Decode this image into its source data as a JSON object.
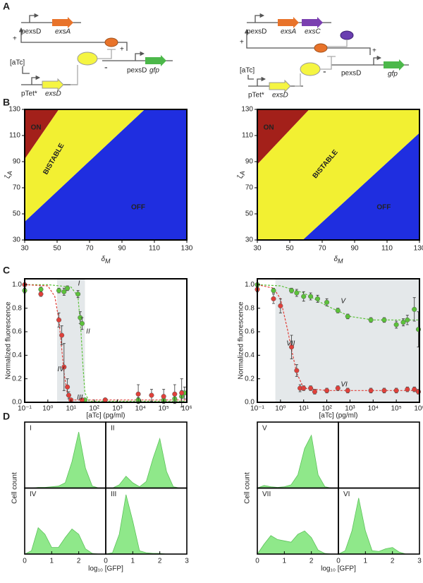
{
  "panel_labels": [
    "A",
    "B",
    "C",
    "D"
  ],
  "diagrams": {
    "left": {
      "labels": [
        "pexsD",
        "exsA",
        "+",
        "+",
        "-",
        "pexsD",
        "gfp",
        "[aTc]",
        "pTet*",
        "exsD"
      ]
    },
    "right": {
      "labels": [
        "pexsD",
        "exsA",
        "exsC",
        "+",
        "+",
        "-",
        "pexsD",
        "gfp",
        "[aTc]",
        "pTet*",
        "exsD"
      ]
    }
  },
  "chart_data": [
    {
      "type": "phase",
      "xlabel": {
        "symbol": "δ",
        "subscript": "M"
      },
      "ylabel": {
        "symbol": "ζ",
        "subscript": "A"
      },
      "xlim": [
        30,
        130
      ],
      "ylim": [
        30,
        130
      ],
      "xticks": [
        30,
        50,
        70,
        90,
        110,
        130
      ],
      "yticks": [
        30,
        50,
        70,
        90,
        110,
        130
      ],
      "regions": [
        {
          "name": "OFF",
          "color": "#1f2ee0",
          "points": [
            [
              30,
              30
            ],
            [
              30,
              44
            ],
            [
              104,
              130
            ],
            [
              130,
              130
            ],
            [
              130,
              30
            ]
          ]
        },
        {
          "name": "BISTABLE",
          "color": "#f2f032",
          "points": [
            [
              30,
              44
            ],
            [
              30,
              92
            ],
            [
              51,
              130
            ],
            [
              104,
              130
            ]
          ]
        },
        {
          "name": "ON",
          "color": "#a3201a",
          "points": [
            [
              30,
              92
            ],
            [
              30,
              130
            ],
            [
              51,
              130
            ]
          ]
        }
      ]
    },
    {
      "type": "phase",
      "xlabel": {
        "symbol": "δ",
        "subscript": "M"
      },
      "ylabel": {
        "symbol": "ζ",
        "subscript": "A"
      },
      "xlim": [
        30,
        130
      ],
      "ylim": [
        30,
        130
      ],
      "xticks": [
        30,
        50,
        70,
        90,
        110,
        130
      ],
      "yticks": [
        30,
        50,
        70,
        90,
        110,
        130
      ],
      "regions": [
        {
          "name": "OFF",
          "color": "#1f2ee0",
          "points": [
            [
              58,
              30
            ],
            [
              130,
              112
            ],
            [
              130,
              30
            ]
          ]
        },
        {
          "name": "BISTABLE",
          "color": "#f2f032",
          "points": [
            [
              30,
              30
            ],
            [
              30,
              88
            ],
            [
              62,
              130
            ],
            [
              130,
              130
            ],
            [
              130,
              112
            ],
            [
              58,
              30
            ]
          ]
        },
        {
          "name": "ON",
          "color": "#a3201a",
          "points": [
            [
              30,
              88
            ],
            [
              30,
              130
            ],
            [
              62,
              130
            ]
          ]
        }
      ]
    },
    {
      "type": "dose",
      "xlabel": "[aTc] (pg/ml)",
      "ylabel": "Normalized fluorescence",
      "log_x": true,
      "xlim": [
        0.1,
        1000000
      ],
      "ylim": [
        0,
        1.05
      ],
      "shaded_x": [
        2.5,
        40
      ],
      "xticks": [
        {
          "value": 0.1,
          "label": "10⁻¹"
        },
        {
          "value": 1,
          "label": "10⁰"
        },
        {
          "value": 10,
          "label": "10¹"
        },
        {
          "value": 100,
          "label": "10²"
        },
        {
          "value": 1000,
          "label": "10³"
        },
        {
          "value": 10000,
          "label": "10⁴"
        },
        {
          "value": 100000,
          "label": "10⁵"
        },
        {
          "value": 1000000,
          "label": "10⁶"
        }
      ],
      "yticks": [
        {
          "value": 0,
          "label": "0.0"
        },
        {
          "value": 0.2,
          "label": "0.2"
        },
        {
          "value": 0.4,
          "label": "0.4"
        },
        {
          "value": 0.6,
          "label": "0.6"
        },
        {
          "value": 0.8,
          "label": "0.8"
        },
        {
          "value": 1,
          "label": "1.0"
        }
      ],
      "series": [
        {
          "color": "#5cc23a",
          "x": [
            0.1,
            0.5,
            3,
            5,
            7,
            20,
            25,
            30,
            40,
            300,
            8000,
            100000,
            300000,
            600000,
            800000
          ],
          "values": [
            0.95,
            0.96,
            0.95,
            0.94,
            0.97,
            0.92,
            0.72,
            0.67,
            0.02,
            0.02,
            0.02,
            0.02,
            0.03,
            0.05,
            0.08
          ],
          "errors": [
            0.02,
            0.02,
            0.02,
            0.03,
            0.02,
            0.03,
            0.05,
            0.05,
            0.01,
            0.01,
            0.02,
            0.02,
            0.03,
            0.05,
            0.05
          ],
          "fit_x": [
            0.1,
            1,
            10,
            20,
            27,
            33,
            40,
            60,
            1000000
          ],
          "fit_values": [
            1,
            1,
            0.98,
            0.9,
            0.6,
            0.3,
            0.08,
            0.01,
            0.01
          ]
        },
        {
          "color": "#e0403a",
          "x": [
            0.1,
            0.5,
            3,
            4,
            5,
            7,
            8,
            10,
            30,
            300,
            8000,
            30000,
            100000,
            300000,
            600000
          ],
          "values": [
            1,
            0.92,
            0.7,
            0.57,
            0.3,
            0.13,
            0.06,
            0.02,
            0.02,
            0.02,
            0.07,
            0.06,
            0.05,
            0.07,
            0.08
          ],
          "errors": [
            0.01,
            0.02,
            0.06,
            0.08,
            0.2,
            0.07,
            0.03,
            0.01,
            0.01,
            0.01,
            0.08,
            0.05,
            0.06,
            0.08,
            0.12
          ],
          "fit_x": [
            0.1,
            1,
            2,
            3,
            4,
            5,
            7,
            10,
            1000000
          ],
          "fit_values": [
            1,
            0.99,
            0.9,
            0.7,
            0.45,
            0.25,
            0.07,
            0.02,
            0.02
          ]
        }
      ],
      "annotations": [
        {
          "text": "I",
          "x": 20,
          "y": 1.01
        },
        {
          "text": "II",
          "x": 45,
          "y": 0.6
        },
        {
          "text": "IV",
          "x": 2.6,
          "y": 0.28
        },
        {
          "text": "III",
          "x": 18,
          "y": 0.04
        }
      ]
    },
    {
      "type": "dose",
      "xlabel": "[aTc] (pg/ml)",
      "ylabel": "Normalized fluorescence",
      "log_x": true,
      "xlim": [
        0.1,
        1000000
      ],
      "ylim": [
        0,
        1.05
      ],
      "shaded_x": [
        0.6,
        1000000
      ],
      "xticks": [
        {
          "value": 0.1,
          "label": "10⁻¹"
        },
        {
          "value": 1,
          "label": "10⁰"
        },
        {
          "value": 10,
          "label": "10¹"
        },
        {
          "value": 100,
          "label": "10²"
        },
        {
          "value": 1000,
          "label": "10³"
        },
        {
          "value": 10000,
          "label": "10⁴"
        },
        {
          "value": 100000,
          "label": "10⁵"
        },
        {
          "value": 1000000,
          "label": "10⁶"
        }
      ],
      "yticks": [
        {
          "value": 0,
          "label": "0.0"
        },
        {
          "value": 0.2,
          "label": "0.2"
        },
        {
          "value": 0.4,
          "label": "0.4"
        },
        {
          "value": 0.6,
          "label": "0.6"
        },
        {
          "value": 0.8,
          "label": "0.8"
        },
        {
          "value": 1,
          "label": "1.0"
        }
      ],
      "series": [
        {
          "color": "#5cc23a",
          "x": [
            0.1,
            0.5,
            3,
            5,
            10,
            20,
            40,
            100,
            300,
            800,
            8000,
            30000,
            100000,
            200000,
            300000,
            600000,
            900000
          ],
          "values": [
            1,
            0.95,
            0.95,
            0.93,
            0.9,
            0.9,
            0.88,
            0.85,
            0.78,
            0.73,
            0.7,
            0.7,
            0.66,
            0.68,
            0.7,
            0.79,
            0.62
          ],
          "errors": [
            0.01,
            0.02,
            0.02,
            0.03,
            0.04,
            0.03,
            0.03,
            0.03,
            0.02,
            0.02,
            0.02,
            0.02,
            0.03,
            0.03,
            0.04,
            0.1,
            0.15
          ],
          "fit_x": [
            0.1,
            1,
            10,
            100,
            1000,
            10000,
            1000000
          ],
          "fit_values": [
            1,
            0.99,
            0.93,
            0.82,
            0.73,
            0.7,
            0.7
          ]
        },
        {
          "color": "#e0403a",
          "x": [
            0.1,
            0.5,
            1,
            3,
            5,
            7,
            10,
            20,
            30,
            100,
            300,
            800,
            8000,
            30000,
            100000,
            300000,
            600000,
            900000
          ],
          "values": [
            0.96,
            0.88,
            0.82,
            0.47,
            0.27,
            0.12,
            0.12,
            0.12,
            0.09,
            0.1,
            0.12,
            0.1,
            0.1,
            0.1,
            0.1,
            0.11,
            0.11,
            0.09
          ],
          "errors": [
            0.02,
            0.04,
            0.06,
            0.1,
            0.05,
            0.03,
            0.02,
            0.02,
            0.02,
            0.02,
            0.02,
            0.02,
            0.02,
            0.02,
            0.02,
            0.02,
            0.02,
            0.02
          ],
          "fit_x": [
            0.1,
            0.5,
            1,
            2,
            3,
            5,
            10,
            100,
            1000000
          ],
          "fit_values": [
            1,
            0.97,
            0.88,
            0.62,
            0.45,
            0.25,
            0.12,
            0.1,
            0.1
          ]
        }
      ],
      "annotations": [
        {
          "text": "V",
          "x": 400,
          "y": 0.86
        },
        {
          "text": "VII",
          "x": 1.8,
          "y": 0.5
        },
        {
          "text": "VI",
          "x": 400,
          "y": 0.15
        }
      ]
    },
    {
      "type": "density",
      "xlabel": "log₁₀ [GFP]",
      "ylabel": "Cell count",
      "color": "#8fe88a",
      "xlim": [
        0,
        3
      ],
      "ylim": [
        0,
        1
      ],
      "x": [
        0,
        0.25,
        0.5,
        0.75,
        1,
        1.25,
        1.5,
        1.75,
        2,
        2.25,
        2.5,
        2.75,
        3
      ],
      "panels": [
        {
          "name": "I",
          "values": [
            0,
            0,
            0.01,
            0.01,
            0.02,
            0.03,
            0.08,
            0.4,
            0.85,
            0.3,
            0.03,
            0,
            0
          ]
        },
        {
          "name": "II",
          "values": [
            0,
            0,
            0.05,
            0.18,
            0.08,
            0.02,
            0.1,
            0.45,
            0.75,
            0.25,
            0.02,
            0,
            0
          ]
        },
        {
          "name": "IV",
          "values": [
            0,
            0.05,
            0.4,
            0.3,
            0.1,
            0.1,
            0.25,
            0.38,
            0.3,
            0.08,
            0.01,
            0,
            0
          ],
          "xticks": [
            0,
            1,
            2
          ]
        },
        {
          "name": "III",
          "values": [
            0,
            0.02,
            0.3,
            0.9,
            0.5,
            0.05,
            0.02,
            0.01,
            0.01,
            0,
            0,
            0,
            0
          ],
          "xticks": [
            0,
            1,
            2,
            3
          ]
        }
      ]
    },
    {
      "type": "density",
      "xlabel": "log₁₀ [GFP]",
      "ylabel": "Cell count",
      "color": "#8fe88a",
      "xlim": [
        0,
        3
      ],
      "ylim": [
        0,
        1
      ],
      "x": [
        0,
        0.25,
        0.5,
        0.75,
        1,
        1.25,
        1.5,
        1.75,
        2,
        2.25,
        2.5,
        2.75,
        3
      ],
      "panels": [
        {
          "name": "V",
          "values": [
            0,
            0.04,
            0.02,
            0.01,
            0.02,
            0.05,
            0.2,
            0.6,
            0.8,
            0.2,
            0.02,
            0,
            0
          ]
        },
        {
          "name": null,
          "values": null
        },
        {
          "name": "VII",
          "values": [
            0,
            0.15,
            0.28,
            0.22,
            0.2,
            0.18,
            0.3,
            0.35,
            0.25,
            0.06,
            0.01,
            0,
            0
          ],
          "xticks": [
            0,
            1,
            2
          ]
        },
        {
          "name": "VI",
          "values": [
            0,
            0.05,
            0.35,
            0.85,
            0.35,
            0.05,
            0.04,
            0.08,
            0.1,
            0.03,
            0,
            0,
            0
          ],
          "xticks": [
            0,
            1,
            2,
            3
          ]
        }
      ]
    }
  ]
}
